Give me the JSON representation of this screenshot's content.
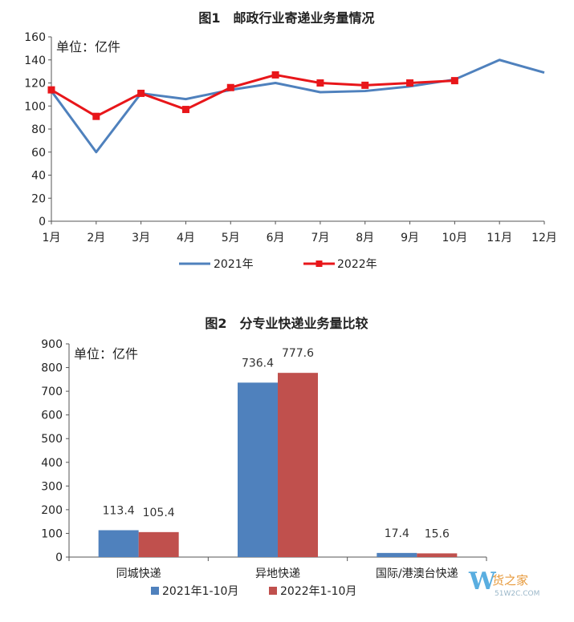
{
  "chart_data": [
    {
      "type": "line",
      "title": "图1　邮政行业寄递业务量情况",
      "unit_label": "单位：亿件",
      "categories": [
        "1月",
        "2月",
        "3月",
        "4月",
        "5月",
        "6月",
        "7月",
        "8月",
        "9月",
        "10月",
        "11月",
        "12月"
      ],
      "ylim": [
        0,
        160
      ],
      "yticks": [
        0,
        20,
        40,
        60,
        80,
        100,
        120,
        140,
        160
      ],
      "grid": false,
      "legend_position": "bottom",
      "series": [
        {
          "name": "2021年",
          "color": "#4f81bd",
          "values": [
            113,
            60,
            111,
            106,
            114,
            120,
            112,
            113,
            117,
            123,
            140,
            129
          ]
        },
        {
          "name": "2022年",
          "color": "#e8161a",
          "marker": "square",
          "values": [
            114,
            91,
            111,
            97,
            116,
            127,
            120,
            118,
            120,
            122,
            null,
            null
          ]
        }
      ]
    },
    {
      "type": "bar",
      "title": "图2　分专业快递业务量比较",
      "unit_label": "单位：亿件",
      "categories": [
        "同城快递",
        "异地快递",
        "国际/港澳台快递"
      ],
      "ylim": [
        0,
        900
      ],
      "yticks": [
        0,
        100,
        200,
        300,
        400,
        500,
        600,
        700,
        800,
        900
      ],
      "grid": false,
      "legend_position": "bottom",
      "series": [
        {
          "name": "2021年1-10月",
          "color": "#4f81bd",
          "values": [
            113.4,
            736.4,
            17.4
          ],
          "labels": [
            "113.4",
            "736.4",
            "17.4"
          ]
        },
        {
          "name": "2022年1-10月",
          "color": "#c0504d",
          "values": [
            105.4,
            777.6,
            15.6
          ],
          "labels": [
            "105.4",
            "777.6",
            "15.6"
          ]
        }
      ]
    }
  ],
  "watermark": {
    "brand": "货之家",
    "site": "51W2C.COM",
    "color": "#e79a3c"
  }
}
